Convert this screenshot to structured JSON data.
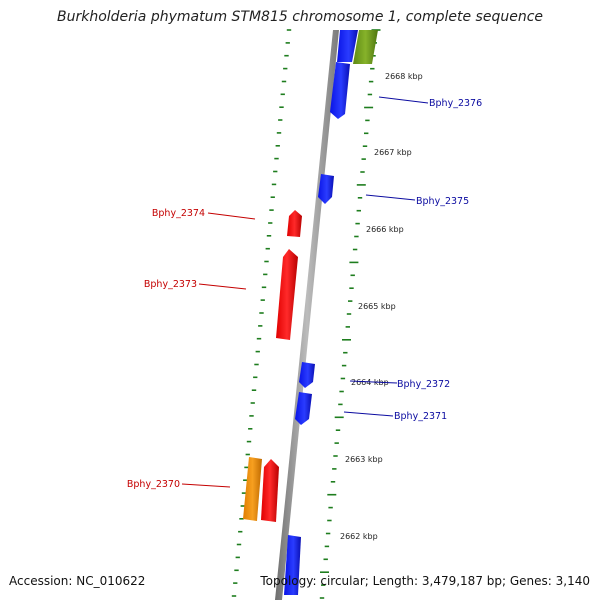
{
  "title": "Burkholderia phymatum STM815 chromosome 1, complete sequence",
  "footer": {
    "accession": "Accession: NC_010622",
    "topology": "Topology: circular; Length: 3,479,187 bp; Genes: 3,140"
  },
  "colors": {
    "forward": "#0a14e6",
    "reverse": "#f00000",
    "orange": "#f0900a",
    "olive": "#6e9a1e",
    "backbone": "#8c8c8c",
    "tick": "#1e7d1e",
    "forward_label": "#0b0ba0",
    "reverse_label": "#c40000"
  },
  "scale": {
    "labels": [
      "2662 kbp",
      "2663 kbp",
      "2664 kbp",
      "2665 kbp",
      "2666 kbp",
      "2667 kbp",
      "2668 kbp"
    ]
  },
  "genes": [
    {
      "name": "Bphy_2370",
      "strand": "reverse"
    },
    {
      "name": "Bphy_2371",
      "strand": "forward"
    },
    {
      "name": "Bphy_2372",
      "strand": "forward"
    },
    {
      "name": "Bphy_2373",
      "strand": "reverse"
    },
    {
      "name": "Bphy_2374",
      "strand": "reverse"
    },
    {
      "name": "Bphy_2375",
      "strand": "forward"
    },
    {
      "name": "Bphy_2376",
      "strand": "forward"
    }
  ]
}
